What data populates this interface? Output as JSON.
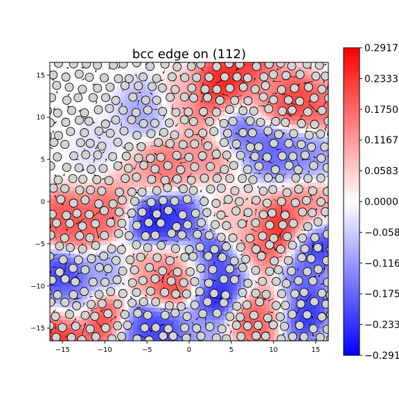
{
  "chart_data": {
    "type": "heatmap",
    "title": "bcc edge on (112)",
    "xlabel": "",
    "ylabel": "",
    "xlim": [
      -16.5,
      16.5
    ],
    "ylim": [
      -16.5,
      16.5
    ],
    "x_ticks": [
      -15,
      -10,
      -5,
      0,
      5,
      10,
      15
    ],
    "y_ticks": [
      -15,
      -10,
      -5,
      0,
      5,
      10,
      15
    ],
    "x_tick_labels": [
      "−15",
      "−10",
      "−5",
      "0",
      "5",
      "10",
      "15"
    ],
    "y_tick_labels": [
      "−15",
      "−10",
      "−5",
      "0",
      "5",
      "10",
      "15"
    ],
    "colormap": "bwr",
    "color_min": -0.2917,
    "color_max": 0.2917,
    "colorbar_ticks": [
      0.2917,
      0.2333,
      0.175,
      0.1167,
      0.0583,
      0.0,
      -0.0583,
      -0.1167,
      -0.175,
      -0.2333,
      -0.2917
    ],
    "colorbar_tick_labels": [
      "0.2917",
      "0.2333",
      "0.1750",
      "0.1167",
      "0.0583",
      "0.0000",
      "−0.0583",
      "−0.1167",
      "−0.1750",
      "−0.2333",
      "−0.2917"
    ],
    "colors": {
      "positive": "#ff0000",
      "zero": "#ffffff",
      "negative": "#0000ff",
      "atom_fill": "#d3d3d3",
      "atom_edge": "#000000"
    },
    "field_sources": [
      {
        "x": 4,
        "y": 14,
        "v": 0.29
      },
      {
        "x": 7,
        "y": 16,
        "v": 0.25
      },
      {
        "x": 3,
        "y": 11,
        "v": 0.24
      },
      {
        "x": 12,
        "y": 12,
        "v": 0.26
      },
      {
        "x": 15,
        "y": 11,
        "v": 0.2
      },
      {
        "x": 10,
        "y": 6,
        "v": -0.2
      },
      {
        "x": 5,
        "y": 9,
        "v": -0.22
      },
      {
        "x": 14,
        "y": 6,
        "v": -0.15
      },
      {
        "x": -5,
        "y": 11,
        "v": -0.12
      },
      {
        "x": -1,
        "y": 12,
        "v": 0.1
      },
      {
        "x": 2,
        "y": 6,
        "v": 0.15
      },
      {
        "x": -3,
        "y": 4,
        "v": 0.18
      },
      {
        "x": -7,
        "y": 3,
        "v": 0.1
      },
      {
        "x": -5,
        "y": -2,
        "v": -0.29
      },
      {
        "x": -2,
        "y": -2,
        "v": -0.25
      },
      {
        "x": -15,
        "y": -2,
        "v": 0.22
      },
      {
        "x": -12,
        "y": -3,
        "v": 0.2
      },
      {
        "x": -9,
        "y": -1,
        "v": 0.2
      },
      {
        "x": -10,
        "y": -8,
        "v": -0.12
      },
      {
        "x": -15,
        "y": -9,
        "v": -0.25
      },
      {
        "x": -5,
        "y": -8,
        "v": 0.12
      },
      {
        "x": 2,
        "y": -7,
        "v": -0.29
      },
      {
        "x": 3,
        "y": -11,
        "v": -0.29
      },
      {
        "x": 5,
        "y": -8,
        "v": -0.2
      },
      {
        "x": -2,
        "y": -10,
        "v": 0.25
      },
      {
        "x": 0,
        "y": -8,
        "v": 0.15
      },
      {
        "x": 11,
        "y": -3,
        "v": 0.28
      },
      {
        "x": 8,
        "y": -6,
        "v": 0.2
      },
      {
        "x": 14,
        "y": -1,
        "v": 0.15
      },
      {
        "x": 15,
        "y": -5,
        "v": -0.25
      },
      {
        "x": 13,
        "y": -10,
        "v": -0.2
      },
      {
        "x": 13,
        "y": -13,
        "v": -0.29
      },
      {
        "x": 8,
        "y": -14,
        "v": 0.22
      },
      {
        "x": 10,
        "y": -12,
        "v": 0.15
      },
      {
        "x": -15,
        "y": -15,
        "v": 0.28
      },
      {
        "x": -10,
        "y": -14,
        "v": 0.25
      },
      {
        "x": -6,
        "y": -15,
        "v": -0.22
      },
      {
        "x": -3,
        "y": -15,
        "v": -0.25
      },
      {
        "x": -14,
        "y": -12,
        "v": -0.15
      },
      {
        "x": 1,
        "y": -15,
        "v": -0.12
      },
      {
        "x": 6,
        "y": -2,
        "v": 0.08
      },
      {
        "x": -10,
        "y": 6,
        "v": -0.05
      },
      {
        "x": 9,
        "y": 13,
        "v": 0.12
      }
    ]
  }
}
